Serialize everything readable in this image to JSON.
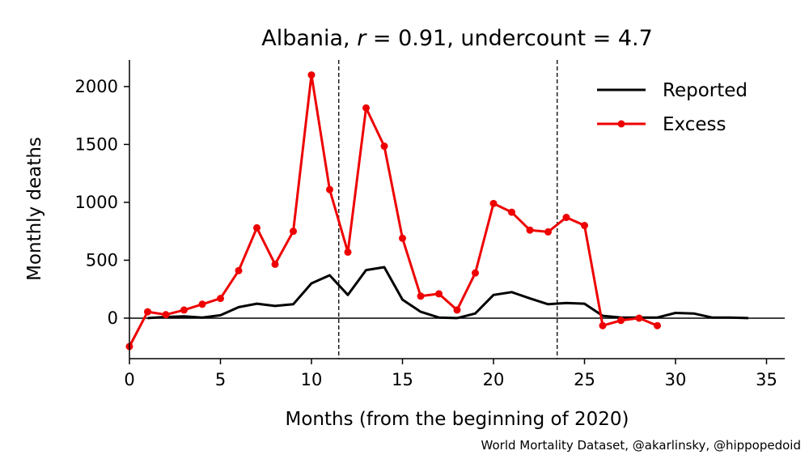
{
  "chart_data": {
    "type": "line",
    "title_parts": {
      "country": "Albania, ",
      "r_symbol": "r",
      "r_value": " = 0.91, undercount = 4.7"
    },
    "xlabel": "Months (from the beginning of 2020)",
    "ylabel": "Monthly deaths",
    "credit": "World Mortality Dataset, @akarlinsky, @hippopedoid",
    "xlim": [
      0,
      36
    ],
    "ylim": [
      -350,
      2230
    ],
    "xticks": [
      0,
      5,
      10,
      15,
      20,
      25,
      30,
      35
    ],
    "yticks": [
      0,
      500,
      1000,
      1500,
      2000
    ],
    "vlines": [
      11.5,
      23.5
    ],
    "legend_position": "top-right",
    "series": [
      {
        "name": "Reported",
        "color": "#000000",
        "markers": false,
        "x": [
          1,
          2,
          3,
          4,
          5,
          6,
          7,
          8,
          9,
          10,
          11,
          12,
          13,
          14,
          15,
          16,
          17,
          18,
          19,
          20,
          21,
          22,
          23,
          24,
          25,
          26,
          27,
          28,
          29,
          30,
          31,
          32,
          33,
          34
        ],
        "y": [
          0,
          10,
          15,
          5,
          25,
          95,
          125,
          105,
          120,
          300,
          370,
          200,
          415,
          440,
          160,
          55,
          5,
          0,
          40,
          200,
          225,
          170,
          120,
          130,
          125,
          20,
          5,
          5,
          5,
          45,
          40,
          5,
          5,
          0
        ]
      },
      {
        "name": "Excess",
        "color": "#ee0000",
        "markers": true,
        "x": [
          0,
          1,
          2,
          3,
          4,
          5,
          6,
          7,
          8,
          9,
          10,
          11,
          12,
          13,
          14,
          15,
          16,
          17,
          18,
          19,
          20,
          21,
          22,
          23,
          24,
          25,
          26,
          27,
          28,
          29
        ],
        "y": [
          -245,
          55,
          30,
          70,
          120,
          170,
          410,
          780,
          465,
          750,
          2100,
          1110,
          570,
          1815,
          1485,
          690,
          190,
          210,
          70,
          390,
          990,
          915,
          760,
          745,
          870,
          800,
          -65,
          -20,
          0,
          -65
        ]
      }
    ]
  }
}
